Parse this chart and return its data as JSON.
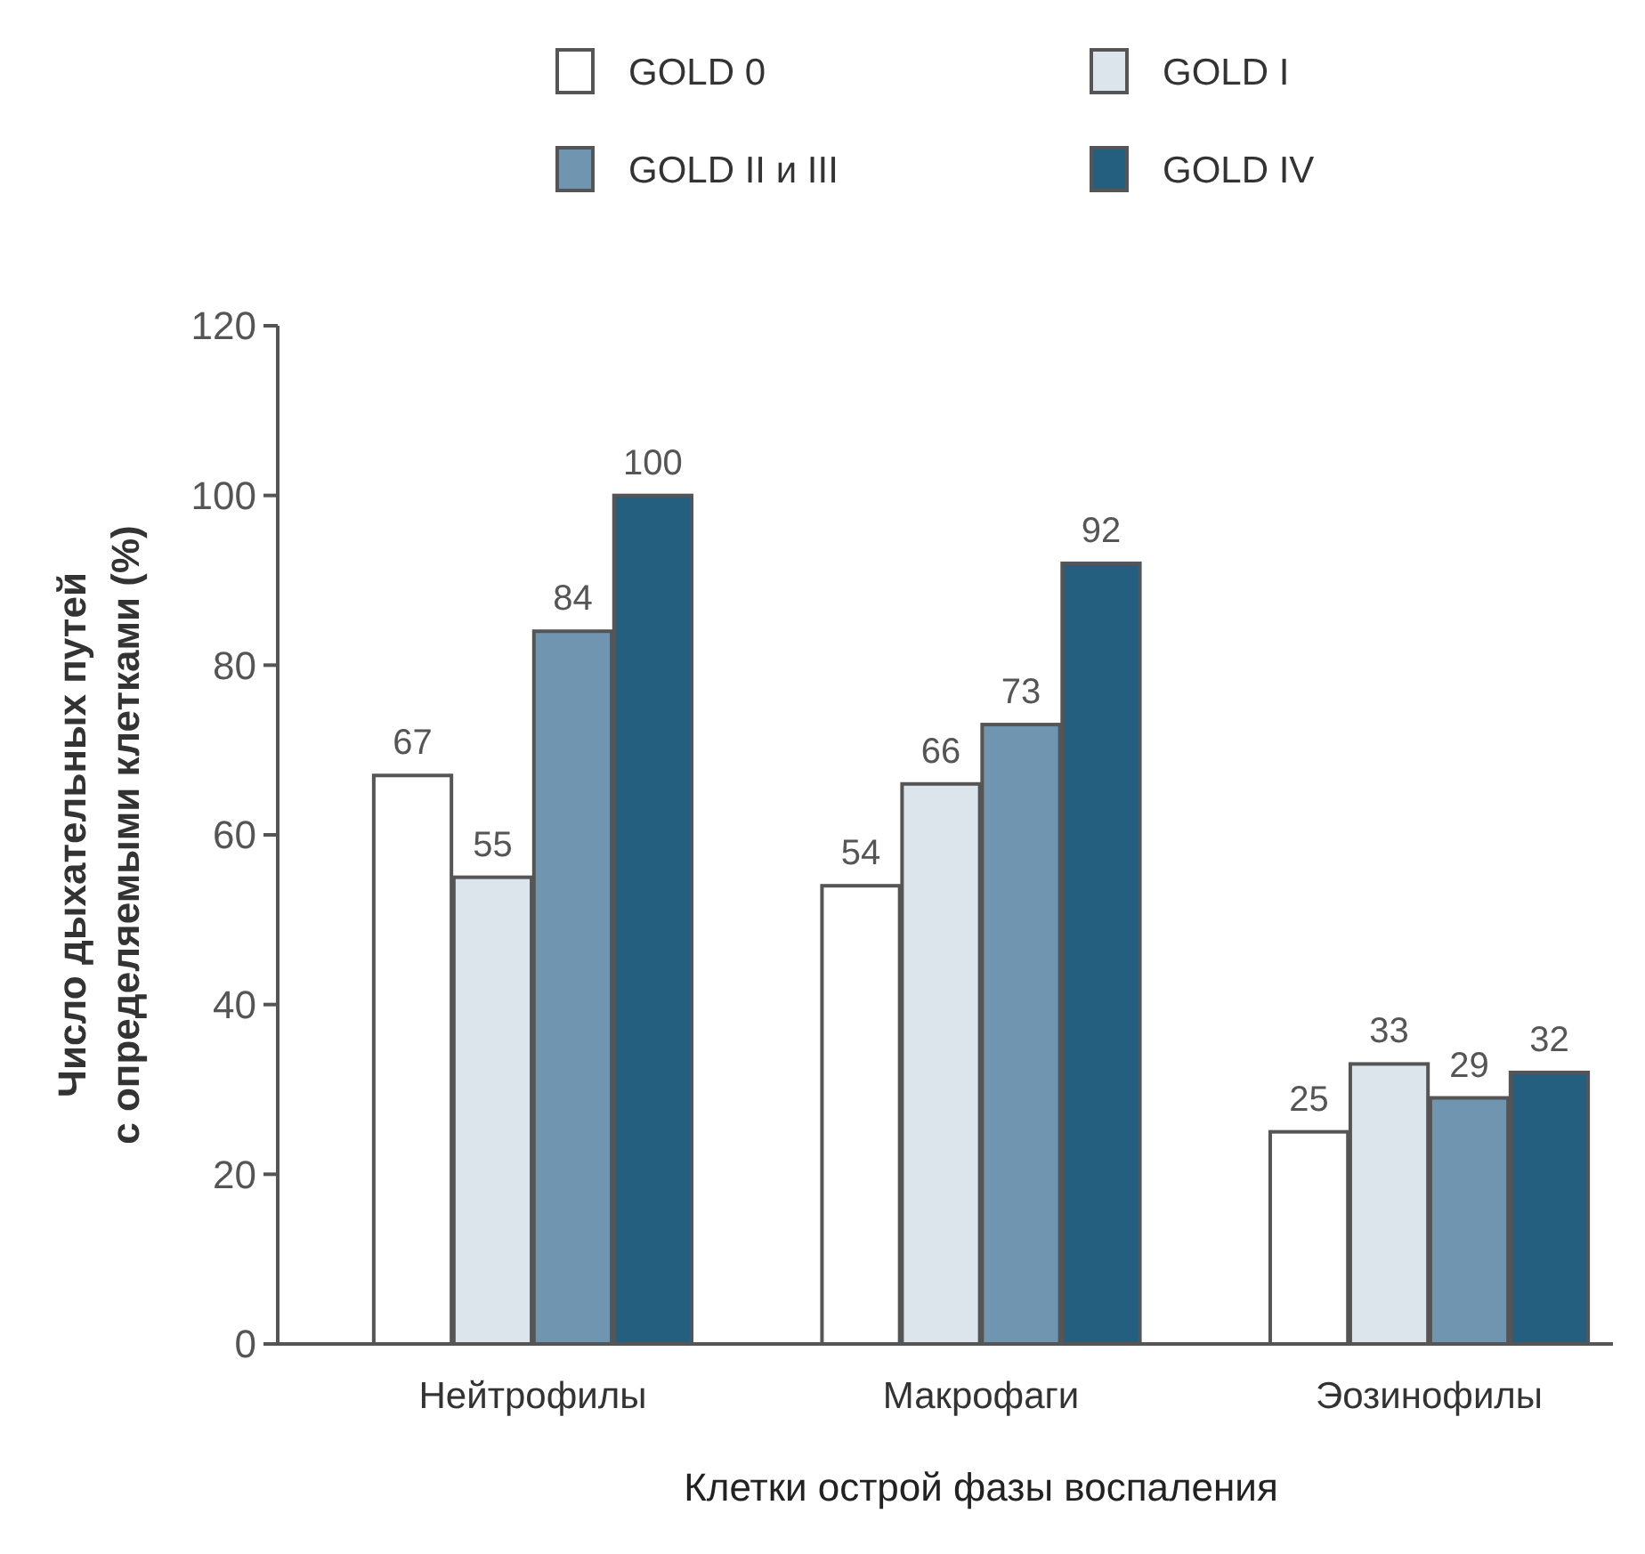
{
  "chart_data": {
    "type": "bar",
    "xlabel": "Клетки острой фазы воспаления",
    "ylabel": "Число дыхательных путей\nс определяемыми клетками (%)",
    "categories": [
      "Нейтрофилы",
      "Макрофаги",
      "Эозинофилы"
    ],
    "series": [
      {
        "name": "GOLD 0",
        "color": "#ffffff",
        "values": [
          67,
          54,
          25
        ]
      },
      {
        "name": "GOLD I",
        "color": "#dde5ec",
        "values": [
          55,
          66,
          33
        ]
      },
      {
        "name": "GOLD II и III",
        "color": "#6f95b0",
        "values": [
          84,
          73,
          29
        ]
      },
      {
        "name": "GOLD IV",
        "color": "#245f80",
        "values": [
          100,
          92,
          32
        ]
      }
    ],
    "ylim": [
      0,
      120
    ],
    "yticks": [
      0,
      20,
      40,
      60,
      80,
      100,
      120
    ],
    "data_labels": true,
    "legend": "top",
    "grid": false
  }
}
